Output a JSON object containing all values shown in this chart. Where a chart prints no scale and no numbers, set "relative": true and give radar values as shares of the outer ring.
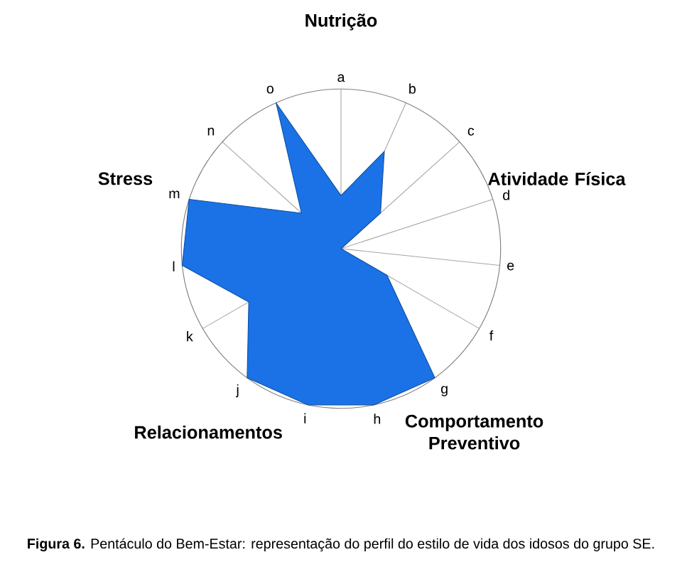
{
  "chart_data": {
    "type": "radar",
    "relative": true,
    "grid": "x",
    "categories": [
      "a",
      "b",
      "c",
      "d",
      "e",
      "f",
      "g",
      "h",
      "i",
      "j",
      "k",
      "l",
      "m",
      "n",
      "o"
    ],
    "series": [
      {
        "color": "#1a72e6",
        "values": [
          0.333,
          0.667,
          0.333,
          0,
          0,
          0.333,
          1,
          1,
          1,
          1,
          0.667,
          1,
          1,
          0.333,
          1
        ]
      }
    ],
    "annotations": [
      "Nutrição",
      "Atividade Física",
      "Comportamento Preventivo",
      "Relacionamentos",
      "Stress",
      "**Figura 6.** Pentáculo do Bem-Estar: representação do perfil do estilo de vida dos idosos do grupo SE."
    ]
  }
}
